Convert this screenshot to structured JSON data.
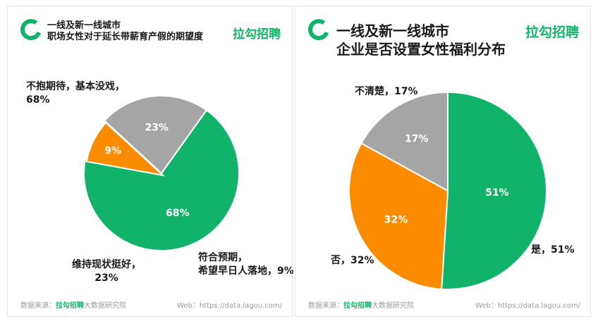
{
  "brand": "拉勾招聘",
  "footer": {
    "source_prefix": "数据来源：",
    "source_brand": "拉勾招聘",
    "source_suffix": "大数据研究院",
    "web": "Web：https://data.lagou.com/"
  },
  "panels": [
    {
      "title_line1": "一线及新一线城市",
      "title_line2": "职场女性对于延长带薪育产假的期望度"
    },
    {
      "title_line1": "一线及新一线城市",
      "title_line2": "企业是否设置女性福利分布"
    }
  ],
  "colors": {
    "green": "#11b36b",
    "gray": "#a5a5a5",
    "orange": "#fb8c00"
  },
  "chart_data": [
    {
      "type": "pie",
      "title": "一线及新一线城市 职场女性对于延长带薪育产假的期望度",
      "slices": [
        {
          "label_lines": [
            "不抱期待，基本没戏，",
            "68%"
          ],
          "value": 68,
          "inner": "68%",
          "color": "#11b36b"
        },
        {
          "label_lines": [
            "符合预期，",
            "希望早日人落地，9%"
          ],
          "value": 9,
          "inner": "9%",
          "color": "#fb8c00"
        },
        {
          "label_lines": [
            "维持现状挺好，",
            "23%"
          ],
          "value": 23,
          "inner": "23%",
          "color": "#a5a5a5"
        }
      ]
    },
    {
      "type": "pie",
      "title": "一线及新一线城市 企业是否设置女性福利分布",
      "slices": [
        {
          "label_lines": [
            "是，51%"
          ],
          "value": 51,
          "inner": "51%",
          "color": "#11b36b"
        },
        {
          "label_lines": [
            "否，32%"
          ],
          "value": 32,
          "inner": "32%",
          "color": "#fb8c00"
        },
        {
          "label_lines": [
            "不清楚，17%"
          ],
          "value": 17,
          "inner": "17%",
          "color": "#a5a5a5"
        }
      ]
    }
  ]
}
